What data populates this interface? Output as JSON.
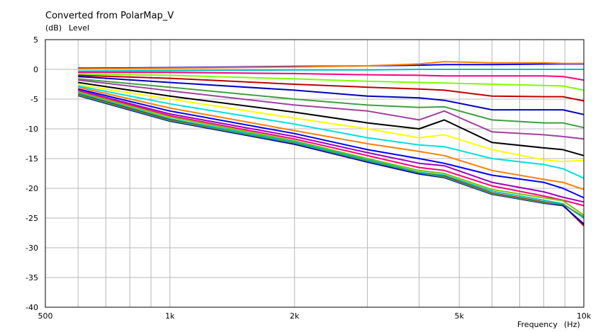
{
  "chart_data": {
    "type": "line",
    "title": "Converted from PolarMap_V",
    "ylabel_unit": "(dB)",
    "ylabel": "Level",
    "xlabel": "Frequency",
    "xlabel_unit": "(Hz)",
    "x_scale": "log",
    "xlim": [
      500,
      10000
    ],
    "ylim": [
      -40,
      5
    ],
    "grid": true,
    "legend": "none",
    "x_ticks": [
      {
        "value": 500,
        "label": "500"
      },
      {
        "value": 1000,
        "label": "1k"
      },
      {
        "value": 2000,
        "label": "2k"
      },
      {
        "value": 5000,
        "label": "5k"
      },
      {
        "value": 10000,
        "label": "10k"
      }
    ],
    "y_ticks": [
      5,
      0,
      -5,
      -10,
      -15,
      -20,
      -25,
      -30,
      -35,
      -40
    ],
    "x": [
      600,
      1000,
      2000,
      3000,
      4000,
      4600,
      6000,
      8000,
      8900,
      10000
    ],
    "series": [
      {
        "color": "#0000ff",
        "values": [
          0.2,
          0.3,
          0.5,
          0.6,
          0.7,
          0.8,
          0.8,
          0.9,
          0.9,
          0.9
        ]
      },
      {
        "color": "#ff8000",
        "values": [
          0.1,
          0.2,
          0.4,
          0.6,
          0.9,
          1.3,
          1.1,
          1.1,
          1.0,
          1.0
        ]
      },
      {
        "color": "#00c0c0",
        "values": [
          -0.3,
          -0.2,
          -0.1,
          -0.1,
          0.0,
          0.0,
          0.0,
          0.0,
          0.0,
          0.0
        ]
      },
      {
        "color": "#ff0080",
        "values": [
          -0.5,
          -0.5,
          -0.7,
          -0.9,
          -1.0,
          -1.1,
          -1.1,
          -1.1,
          -1.2,
          -1.8
        ]
      },
      {
        "color": "#80ff00",
        "values": [
          -0.8,
          -1.0,
          -1.6,
          -2.0,
          -2.2,
          -2.3,
          -2.5,
          -2.7,
          -2.8,
          -3.5
        ]
      },
      {
        "color": "#c00000",
        "values": [
          -1.0,
          -1.5,
          -2.5,
          -3.0,
          -3.3,
          -3.5,
          -4.5,
          -4.6,
          -4.6,
          -5.3
        ]
      },
      {
        "color": "#0000c0",
        "values": [
          -1.2,
          -2.2,
          -3.5,
          -4.5,
          -4.8,
          -5.2,
          -6.8,
          -6.8,
          -6.8,
          -7.6
        ]
      },
      {
        "color": "#40a040",
        "values": [
          -1.6,
          -3.0,
          -5.0,
          -6.0,
          -6.4,
          -6.3,
          -8.5,
          -9.0,
          -9.0,
          -9.8
        ]
      },
      {
        "color": "#a040a0",
        "values": [
          -1.8,
          -3.6,
          -6.0,
          -7.0,
          -8.5,
          -7.0,
          -10.5,
          -11.0,
          -11.3,
          -11.7
        ]
      },
      {
        "color": "#000000",
        "values": [
          -2.2,
          -4.5,
          -7.2,
          -9.0,
          -10.0,
          -8.5,
          -12.3,
          -13.2,
          -13.5,
          -14.5
        ]
      },
      {
        "color": "#ffff00",
        "values": [
          -2.6,
          -5.0,
          -8.2,
          -10.0,
          -11.5,
          -11.0,
          -13.5,
          -15.2,
          -15.5,
          -15.3
        ]
      },
      {
        "color": "#00e0e0",
        "values": [
          -2.8,
          -5.8,
          -9.2,
          -11.5,
          -12.7,
          -13.0,
          -15.0,
          -16.0,
          -16.7,
          -18.3
        ]
      },
      {
        "color": "#ff8000",
        "values": [
          -3.0,
          -6.5,
          -10.3,
          -12.5,
          -13.8,
          -14.5,
          -17.0,
          -18.5,
          -19.0,
          -20.2
        ]
      },
      {
        "color": "#0000ff",
        "values": [
          -3.3,
          -7.0,
          -10.8,
          -13.5,
          -15.0,
          -15.8,
          -17.8,
          -19.0,
          -20.0,
          -21.6
        ]
      },
      {
        "color": "#a000c0",
        "values": [
          -3.5,
          -7.5,
          -11.3,
          -14.0,
          -15.8,
          -16.2,
          -19.0,
          -20.6,
          -21.5,
          -22.3
        ]
      },
      {
        "color": "#ff0080",
        "values": [
          -3.6,
          -7.8,
          -11.7,
          -14.5,
          -16.5,
          -17.0,
          -19.6,
          -21.3,
          -22.0,
          -22.9
        ]
      },
      {
        "color": "#80c000",
        "values": [
          -3.8,
          -8.0,
          -12.0,
          -15.0,
          -17.0,
          -17.5,
          -20.2,
          -21.6,
          -22.1,
          -24.5
        ]
      },
      {
        "color": "#00c0c0",
        "values": [
          -4.0,
          -8.3,
          -12.2,
          -15.2,
          -17.3,
          -17.8,
          -20.5,
          -22.0,
          -22.6,
          -25.0
        ]
      },
      {
        "color": "#c00000",
        "values": [
          -4.2,
          -8.5,
          -12.5,
          -15.5,
          -17.5,
          -18.0,
          -20.8,
          -22.3,
          -22.8,
          -26.3
        ]
      },
      {
        "color": "#0000c0",
        "values": [
          -4.4,
          -8.7,
          -12.6,
          -15.6,
          -17.6,
          -18.2,
          -21.0,
          -22.5,
          -22.9,
          -26.0
        ]
      },
      {
        "color": "#40a040",
        "values": [
          -4.3,
          -8.6,
          -12.4,
          -15.4,
          -17.4,
          -18.1,
          -20.9,
          -22.4,
          -22.7,
          -24.8
        ]
      }
    ]
  }
}
